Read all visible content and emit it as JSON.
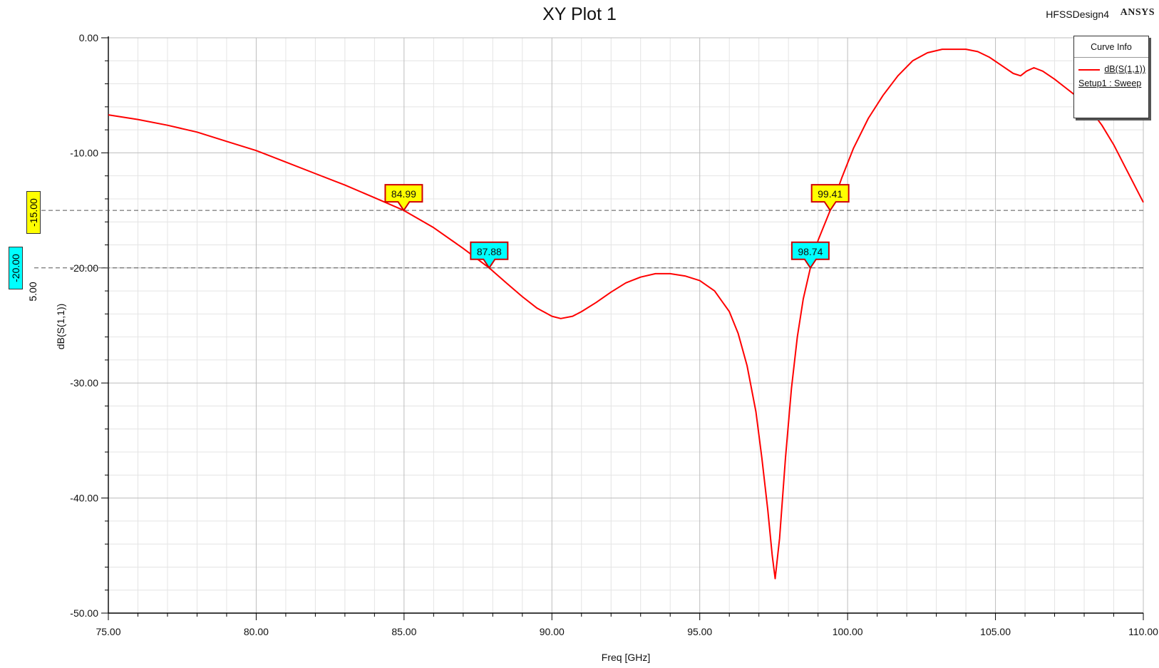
{
  "header": {
    "title": "XY Plot 1",
    "design_name": "HFSSDesign4",
    "brand": "ANSYS"
  },
  "legend": {
    "title": "Curve Info",
    "curve_name": "dB(S(1,1))",
    "setup": "Setup1 : Sweep",
    "curve_color": "#ff0000"
  },
  "left_markers": {
    "yellow_value": "-15.00",
    "cyan_value": "-20.00",
    "scale_label": "5.00"
  },
  "chart_data": {
    "type": "line",
    "title": "XY Plot 1",
    "xlabel": "Freq [GHz]",
    "ylabel": "dB(S(1,1))",
    "xlim": [
      75,
      110
    ],
    "ylim": [
      -50,
      0
    ],
    "x_ticks": [
      "75.00",
      "80.00",
      "85.00",
      "90.00",
      "95.00",
      "100.00",
      "105.00",
      "110.00"
    ],
    "y_ticks": [
      "0.00",
      "-10.00",
      "-20.00",
      "-30.00",
      "-40.00",
      "-50.00"
    ],
    "grid": true,
    "legend_position": "top-right",
    "series": [
      {
        "name": "dB(S(1,1))",
        "color": "#ff0000",
        "x": [
          75,
          76,
          77,
          78,
          79,
          80,
          81,
          82,
          83,
          84,
          84.99,
          86,
          87,
          87.88,
          88.5,
          89,
          89.5,
          90,
          90.3,
          90.7,
          91,
          91.5,
          92,
          92.5,
          93,
          93.5,
          94,
          94.5,
          95,
          95.5,
          96,
          96.3,
          96.6,
          96.9,
          97.1,
          97.3,
          97.45,
          97.55,
          97.7,
          97.9,
          98.1,
          98.3,
          98.5,
          98.74,
          99,
          99.41,
          99.8,
          100.2,
          100.7,
          101.2,
          101.7,
          102.2,
          102.7,
          103.2,
          103.6,
          104,
          104.4,
          104.8,
          105.2,
          105.6,
          105.85,
          106.05,
          106.3,
          106.6,
          107,
          107.4,
          107.8,
          108.2,
          108.6,
          109,
          109.4,
          109.8,
          110
        ],
        "y": [
          -6.7,
          -7.1,
          -7.6,
          -8.2,
          -9.0,
          -9.8,
          -10.8,
          -11.8,
          -12.8,
          -13.9,
          -15.0,
          -16.5,
          -18.3,
          -20.0,
          -21.4,
          -22.5,
          -23.5,
          -24.2,
          -24.4,
          -24.2,
          -23.8,
          -23.0,
          -22.1,
          -21.3,
          -20.8,
          -20.5,
          -20.5,
          -20.7,
          -21.1,
          -22.0,
          -23.8,
          -25.7,
          -28.5,
          -32.5,
          -36.5,
          -41.0,
          -45.0,
          -47.0,
          -43.5,
          -36.5,
          -30.5,
          -26.0,
          -22.7,
          -20.0,
          -17.6,
          -15.0,
          -12.2,
          -9.6,
          -7.0,
          -5.0,
          -3.3,
          -2.0,
          -1.3,
          -1.0,
          -1.0,
          -1.0,
          -1.2,
          -1.7,
          -2.4,
          -3.1,
          -3.3,
          -2.9,
          -2.6,
          -2.9,
          -3.6,
          -4.4,
          -5.2,
          -6.2,
          -7.6,
          -9.3,
          -11.3,
          -13.3,
          -14.3
        ]
      }
    ],
    "reference_lines": [
      {
        "y": -15,
        "style": "dashed"
      },
      {
        "y": -20,
        "style": "dashed"
      }
    ],
    "markers": [
      {
        "label": "84.99",
        "x": 84.99,
        "y": -15,
        "fill": "#ffff00"
      },
      {
        "label": "87.88",
        "x": 87.88,
        "y": -20,
        "fill": "#00ffff"
      },
      {
        "label": "98.74",
        "x": 98.74,
        "y": -20,
        "fill": "#00ffff"
      },
      {
        "label": "99.41",
        "x": 99.41,
        "y": -15,
        "fill": "#ffff00"
      }
    ]
  }
}
